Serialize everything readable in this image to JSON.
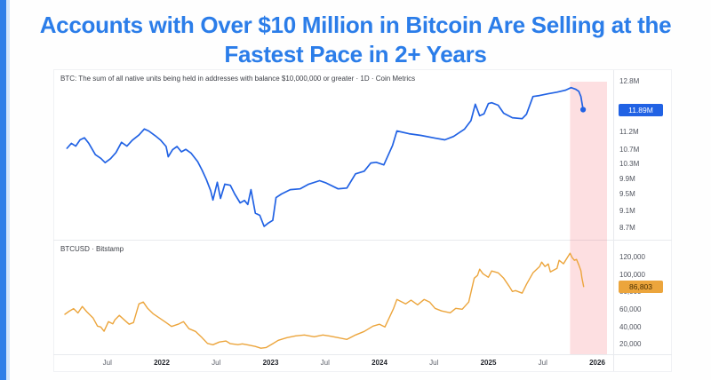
{
  "header": {
    "title_line1": "Accounts with Over $10 Million in Bitcoin Are Selling at the",
    "title_line2": "Fastest Pace in 2+ Years",
    "title_color": "#2b7de9",
    "accent_bar_color": "#2e7fe8",
    "accent_bar_light_color": "#cde2fa"
  },
  "highlight": {
    "from": 2025.75,
    "to": 2026.09,
    "color": "rgba(242,54,69,0.16)"
  },
  "x_axis": {
    "ticks": [
      {
        "label": "Jul",
        "t": 2021.5,
        "emphasis": false
      },
      {
        "label": "2022",
        "t": 2022.0,
        "emphasis": true
      },
      {
        "label": "Jul",
        "t": 2022.5,
        "emphasis": false
      },
      {
        "label": "2023",
        "t": 2023.0,
        "emphasis": true
      },
      {
        "label": "Jul",
        "t": 2023.5,
        "emphasis": false
      },
      {
        "label": "2024",
        "t": 2024.0,
        "emphasis": true
      },
      {
        "label": "Jul",
        "t": 2024.5,
        "emphasis": false
      },
      {
        "label": "2025",
        "t": 2025.0,
        "emphasis": true
      },
      {
        "label": "Jul",
        "t": 2025.5,
        "emphasis": false
      },
      {
        "label": "2026",
        "t": 2026.0,
        "emphasis": true
      }
    ]
  },
  "chart_data": [
    {
      "type": "line",
      "id": "btc-supply-10m-plus-addresses",
      "title": "BTC: The sum of all native units being held in addresses with balance $10,000,000 or greater · 1D · Coin Metrics",
      "unit": "million BTC",
      "scale": "log",
      "line_color": "#2162e4",
      "badge_bg": "#2162e4",
      "badge_text_color": "#ffffff",
      "last_value": 11.89,
      "last_value_label": "11.89M",
      "end_dot": true,
      "y_ticks": [
        {
          "label": "12.8M",
          "value": 12.8
        },
        {
          "label": "11.2M",
          "value": 11.2
        },
        {
          "label": "10.7M",
          "value": 10.7
        },
        {
          "label": "10.3M",
          "value": 10.3
        },
        {
          "label": "9.9M",
          "value": 9.9
        },
        {
          "label": "9.5M",
          "value": 9.5
        },
        {
          "label": "9.1M",
          "value": 9.1
        },
        {
          "label": "8.7M",
          "value": 8.7
        }
      ],
      "points": [
        [
          2021.13,
          10.74
        ],
        [
          2021.17,
          10.88
        ],
        [
          2021.21,
          10.8
        ],
        [
          2021.25,
          10.98
        ],
        [
          2021.29,
          11.04
        ],
        [
          2021.33,
          10.88
        ],
        [
          2021.39,
          10.56
        ],
        [
          2021.44,
          10.46
        ],
        [
          2021.48,
          10.34
        ],
        [
          2021.53,
          10.45
        ],
        [
          2021.58,
          10.62
        ],
        [
          2021.63,
          10.91
        ],
        [
          2021.68,
          10.8
        ],
        [
          2021.73,
          10.97
        ],
        [
          2021.79,
          11.12
        ],
        [
          2021.84,
          11.3
        ],
        [
          2021.88,
          11.24
        ],
        [
          2021.94,
          11.1
        ],
        [
          2021.99,
          10.97
        ],
        [
          2022.04,
          10.79
        ],
        [
          2022.06,
          10.5
        ],
        [
          2022.1,
          10.7
        ],
        [
          2022.14,
          10.79
        ],
        [
          2022.18,
          10.64
        ],
        [
          2022.22,
          10.71
        ],
        [
          2022.27,
          10.6
        ],
        [
          2022.33,
          10.37
        ],
        [
          2022.37,
          10.14
        ],
        [
          2022.41,
          9.89
        ],
        [
          2022.45,
          9.6
        ],
        [
          2022.47,
          9.37
        ],
        [
          2022.51,
          9.82
        ],
        [
          2022.54,
          9.41
        ],
        [
          2022.58,
          9.77
        ],
        [
          2022.63,
          9.74
        ],
        [
          2022.67,
          9.52
        ],
        [
          2022.72,
          9.3
        ],
        [
          2022.76,
          9.36
        ],
        [
          2022.79,
          9.26
        ],
        [
          2022.82,
          9.63
        ],
        [
          2022.86,
          9.05
        ],
        [
          2022.9,
          9.0
        ],
        [
          2022.94,
          8.74
        ],
        [
          2022.98,
          8.82
        ],
        [
          2023.02,
          8.88
        ],
        [
          2023.05,
          9.43
        ],
        [
          2023.1,
          9.52
        ],
        [
          2023.18,
          9.63
        ],
        [
          2023.27,
          9.65
        ],
        [
          2023.35,
          9.77
        ],
        [
          2023.45,
          9.86
        ],
        [
          2023.51,
          9.8
        ],
        [
          2023.62,
          9.65
        ],
        [
          2023.7,
          9.67
        ],
        [
          2023.78,
          10.04
        ],
        [
          2023.86,
          10.11
        ],
        [
          2023.92,
          10.33
        ],
        [
          2023.97,
          10.35
        ],
        [
          2024.04,
          10.28
        ],
        [
          2024.12,
          10.82
        ],
        [
          2024.16,
          11.24
        ],
        [
          2024.27,
          11.16
        ],
        [
          2024.38,
          11.11
        ],
        [
          2024.51,
          11.03
        ],
        [
          2024.6,
          10.98
        ],
        [
          2024.68,
          11.08
        ],
        [
          2024.78,
          11.29
        ],
        [
          2024.84,
          11.55
        ],
        [
          2024.88,
          12.06
        ],
        [
          2024.92,
          11.7
        ],
        [
          2024.96,
          11.76
        ],
        [
          2025.0,
          12.08
        ],
        [
          2025.03,
          12.11
        ],
        [
          2025.09,
          12.03
        ],
        [
          2025.14,
          11.78
        ],
        [
          2025.22,
          11.64
        ],
        [
          2025.31,
          11.61
        ],
        [
          2025.35,
          11.75
        ],
        [
          2025.41,
          12.31
        ],
        [
          2025.47,
          12.34
        ],
        [
          2025.55,
          12.4
        ],
        [
          2025.63,
          12.45
        ],
        [
          2025.71,
          12.52
        ],
        [
          2025.76,
          12.6
        ],
        [
          2025.8,
          12.55
        ],
        [
          2025.83,
          12.48
        ],
        [
          2025.85,
          12.31
        ],
        [
          2025.87,
          11.89
        ]
      ]
    },
    {
      "type": "line",
      "id": "btcusd-bitstamp",
      "title": "BTCUSD · Bitstamp",
      "unit": "USD",
      "scale": "linear",
      "line_color": "#eca53c",
      "badge_bg": "#eca53c",
      "badge_text_color": "#4a3000",
      "last_value": 86803,
      "last_value_label": "86,803",
      "end_dot": false,
      "y_ticks": [
        {
          "label": "120,000",
          "value": 120000
        },
        {
          "label": "100,000",
          "value": 100000
        },
        {
          "label": "80,000",
          "value": 80000
        },
        {
          "label": "60,000",
          "value": 60000
        },
        {
          "label": "40,000",
          "value": 40000
        },
        {
          "label": "20,000",
          "value": 20000
        }
      ],
      "points": [
        [
          2021.11,
          55000
        ],
        [
          2021.15,
          58500
        ],
        [
          2021.19,
          61500
        ],
        [
          2021.23,
          56500
        ],
        [
          2021.27,
          63900
        ],
        [
          2021.31,
          58000
        ],
        [
          2021.37,
          50600
        ],
        [
          2021.41,
          41400
        ],
        [
          2021.44,
          40400
        ],
        [
          2021.47,
          35500
        ],
        [
          2021.51,
          46500
        ],
        [
          2021.55,
          44000
        ],
        [
          2021.57,
          48600
        ],
        [
          2021.61,
          53700
        ],
        [
          2021.66,
          48000
        ],
        [
          2021.7,
          43500
        ],
        [
          2021.74,
          45500
        ],
        [
          2021.79,
          66900
        ],
        [
          2021.83,
          69000
        ],
        [
          2021.87,
          61800
        ],
        [
          2021.92,
          55700
        ],
        [
          2021.98,
          50600
        ],
        [
          2022.04,
          45500
        ],
        [
          2022.09,
          41000
        ],
        [
          2022.15,
          43500
        ],
        [
          2022.2,
          46500
        ],
        [
          2022.25,
          38400
        ],
        [
          2022.31,
          35300
        ],
        [
          2022.37,
          28200
        ],
        [
          2022.42,
          21500
        ],
        [
          2022.47,
          20000
        ],
        [
          2022.53,
          23200
        ],
        [
          2022.59,
          24300
        ],
        [
          2022.63,
          21200
        ],
        [
          2022.7,
          20100
        ],
        [
          2022.74,
          21000
        ],
        [
          2022.8,
          19600
        ],
        [
          2022.86,
          18100
        ],
        [
          2022.91,
          16000
        ],
        [
          2022.96,
          16800
        ],
        [
          2023.02,
          21200
        ],
        [
          2023.07,
          25100
        ],
        [
          2023.15,
          28200
        ],
        [
          2023.23,
          30200
        ],
        [
          2023.31,
          31200
        ],
        [
          2023.4,
          29200
        ],
        [
          2023.48,
          31200
        ],
        [
          2023.54,
          30100
        ],
        [
          2023.62,
          28200
        ],
        [
          2023.7,
          26100
        ],
        [
          2023.78,
          31200
        ],
        [
          2023.86,
          35300
        ],
        [
          2023.94,
          41400
        ],
        [
          2024.0,
          43500
        ],
        [
          2024.05,
          40400
        ],
        [
          2024.13,
          61800
        ],
        [
          2024.16,
          72000
        ],
        [
          2024.24,
          66900
        ],
        [
          2024.29,
          71200
        ],
        [
          2024.35,
          65900
        ],
        [
          2024.41,
          72000
        ],
        [
          2024.46,
          69000
        ],
        [
          2024.51,
          61800
        ],
        [
          2024.57,
          58800
        ],
        [
          2024.65,
          56700
        ],
        [
          2024.7,
          61800
        ],
        [
          2024.76,
          60800
        ],
        [
          2024.82,
          69000
        ],
        [
          2024.87,
          96500
        ],
        [
          2024.9,
          99600
        ],
        [
          2024.92,
          106700
        ],
        [
          2024.95,
          101600
        ],
        [
          2025.0,
          97500
        ],
        [
          2025.03,
          104700
        ],
        [
          2025.09,
          102600
        ],
        [
          2025.14,
          96500
        ],
        [
          2025.19,
          87300
        ],
        [
          2025.22,
          81200
        ],
        [
          2025.25,
          82200
        ],
        [
          2025.31,
          79200
        ],
        [
          2025.35,
          89400
        ],
        [
          2025.41,
          102600
        ],
        [
          2025.47,
          109800
        ],
        [
          2025.49,
          114900
        ],
        [
          2025.52,
          109800
        ],
        [
          2025.55,
          112800
        ],
        [
          2025.57,
          103600
        ],
        [
          2025.63,
          107700
        ],
        [
          2025.65,
          116900
        ],
        [
          2025.69,
          113000
        ],
        [
          2025.75,
          125100
        ],
        [
          2025.77,
          120000
        ],
        [
          2025.79,
          116900
        ],
        [
          2025.81,
          118000
        ],
        [
          2025.83,
          111800
        ],
        [
          2025.85,
          105000
        ],
        [
          2025.86,
          96500
        ],
        [
          2025.875,
          86803
        ]
      ]
    }
  ]
}
